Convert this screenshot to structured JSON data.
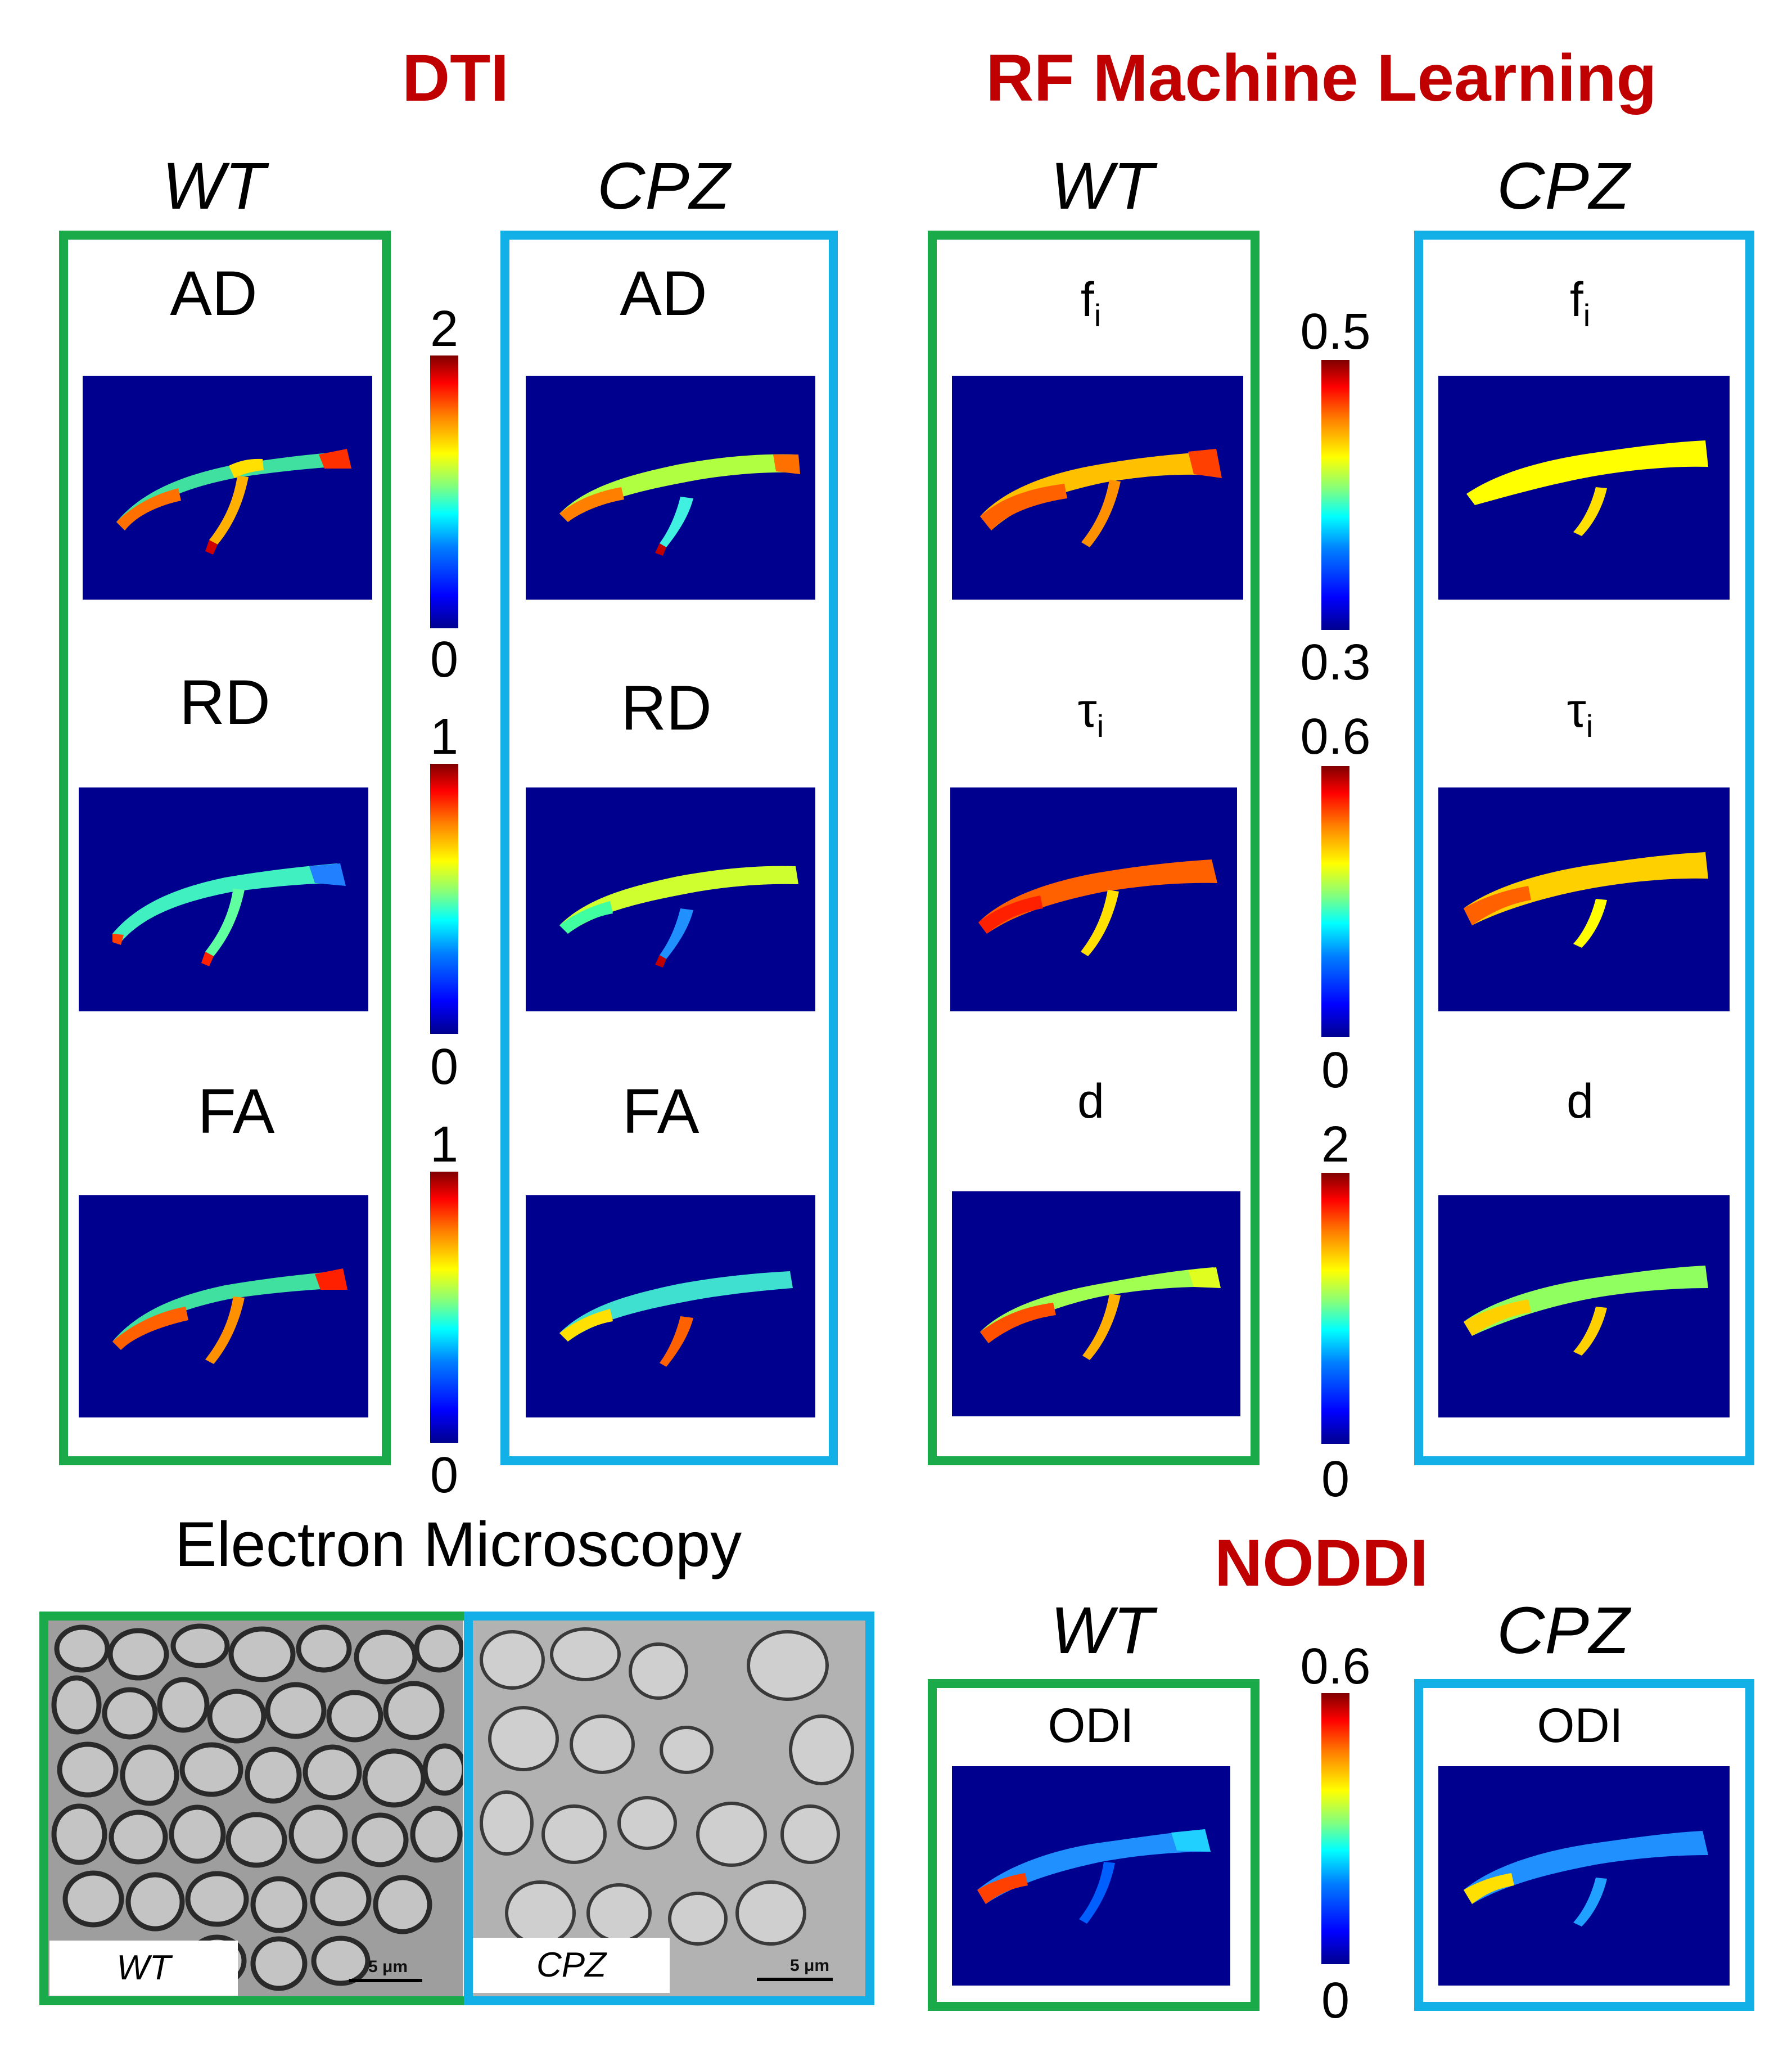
{
  "titles": {
    "dti": "DTI",
    "rf": "RF Machine Learning",
    "noddi": "NODDI",
    "em": "Electron Microscopy"
  },
  "groups": {
    "wt": "WT",
    "cpz": "CPZ"
  },
  "dti": {
    "params": [
      "AD",
      "RD",
      "FA"
    ],
    "colorbars": [
      {
        "max": "2",
        "min": "0"
      },
      {
        "max": "1",
        "min": "0"
      },
      {
        "max": "1",
        "min": "0"
      }
    ]
  },
  "rf": {
    "params": [
      {
        "base": "f",
        "sub": "i"
      },
      {
        "base": "τ",
        "sub": "i"
      },
      {
        "base": "d",
        "sub": ""
      }
    ],
    "colorbars": [
      {
        "max": "0.5",
        "min": "0.3"
      },
      {
        "max": "0.6",
        "min": "0"
      },
      {
        "max": "2",
        "min": "0"
      }
    ]
  },
  "noddi": {
    "param": "ODI",
    "colorbar": {
      "max": "0.6",
      "min": "0"
    }
  },
  "em": {
    "wt_label": "WT",
    "cpz_label": "CPZ",
    "scale_label": "5 μm"
  },
  "colors": {
    "title_red": "#c00000",
    "wt_frame": "#1aaa4a",
    "cpz_frame": "#13b0e8",
    "map_background": "#00008f"
  }
}
